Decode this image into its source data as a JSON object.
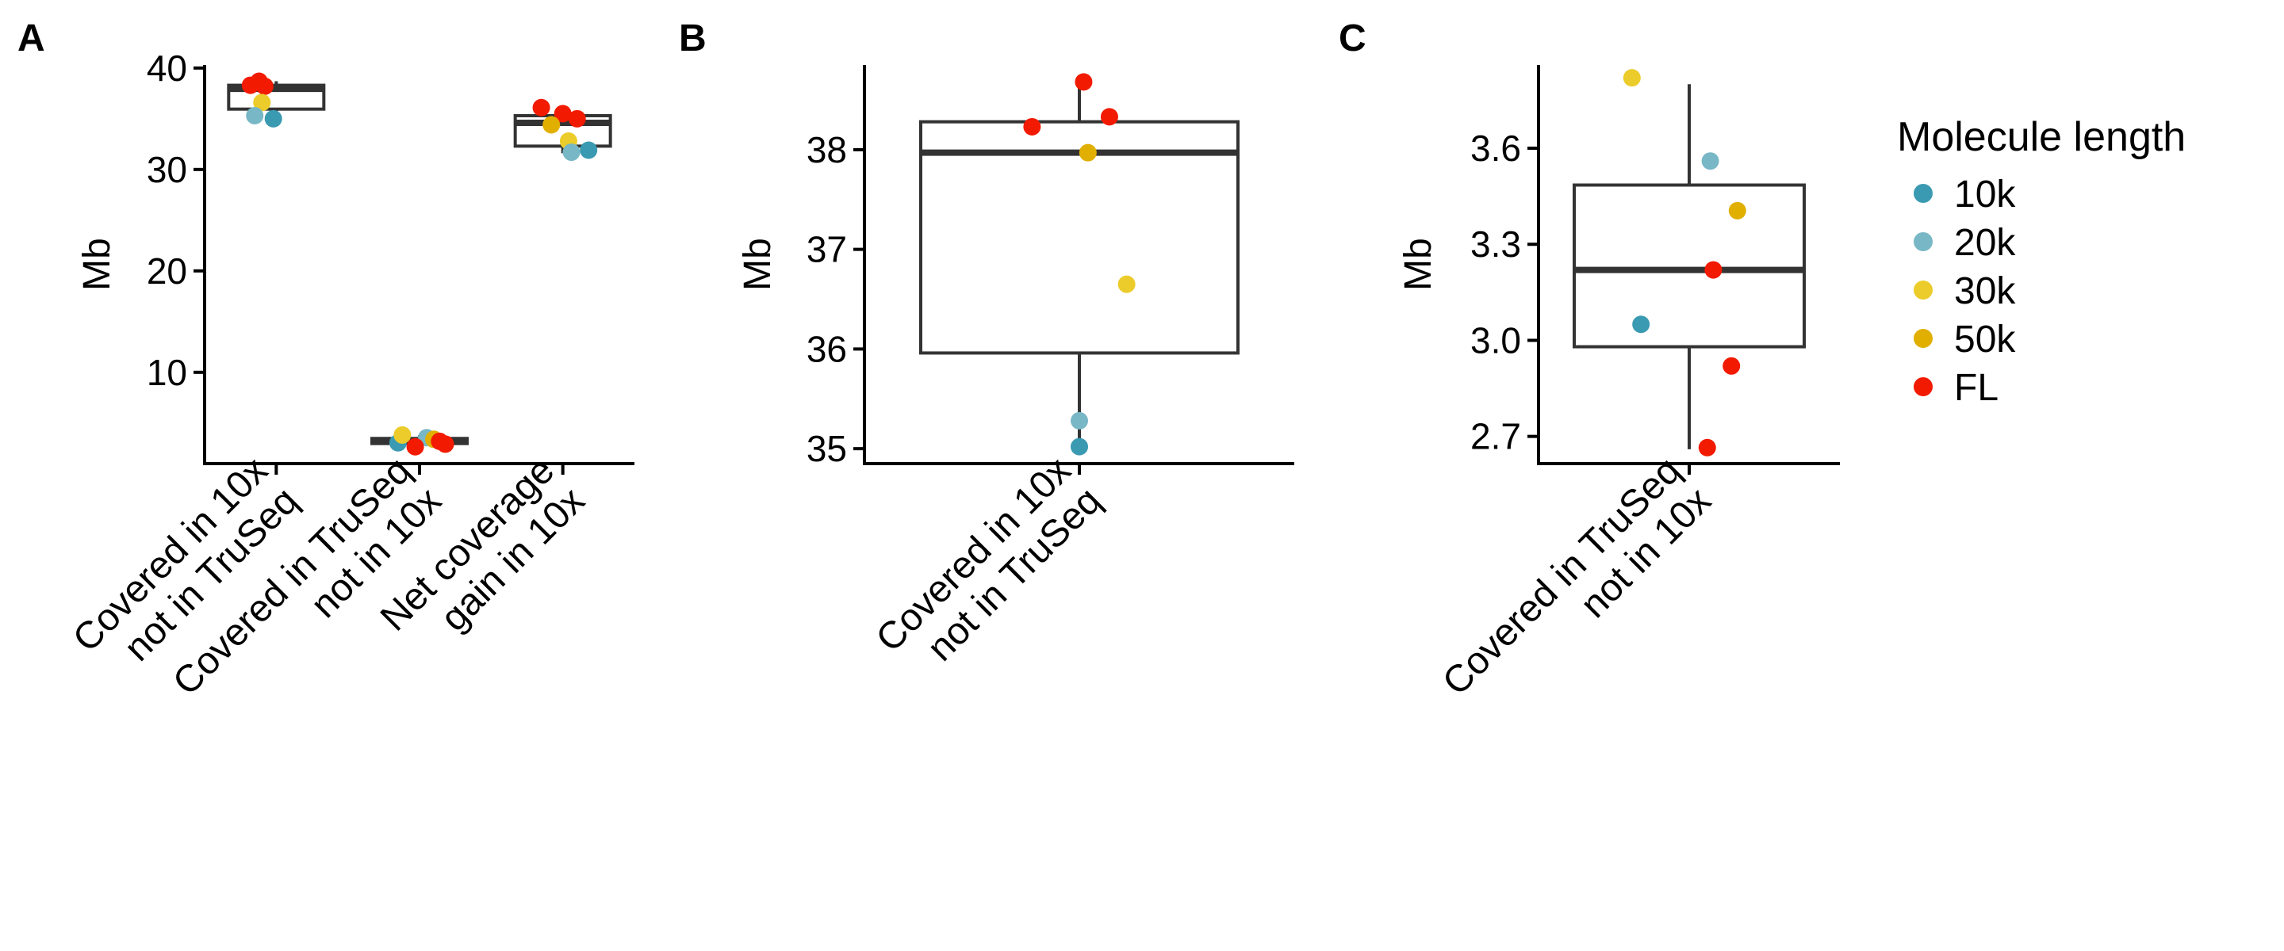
{
  "chart_data": [
    {
      "type": "box",
      "panel": "A",
      "ylabel": "Mb",
      "ylim": [
        1,
        40.3
      ],
      "yticks": [
        10,
        20,
        30,
        40
      ],
      "categories": [
        [
          "Covered in 10x",
          "not in TruSeq"
        ],
        [
          "Covered in TruSeq",
          "not in 10x"
        ],
        [
          "Net coverage",
          "gain in 10x"
        ]
      ],
      "boxes": [
        {
          "q1": 35.95,
          "median": 37.95,
          "q3": 38.3,
          "whisker_low": 35.0,
          "whisker_high": 38.7
        },
        {
          "q1": 2.98,
          "median": 3.22,
          "q3": 3.48,
          "whisker_low": 2.66,
          "whisker_high": 3.8
        },
        {
          "q1": 32.3,
          "median": 34.6,
          "q3": 35.3,
          "whisker_low": 31.6,
          "whisker_high": 36.0
        }
      ],
      "points": [
        {
          "cat": 0,
          "jitter": -0.18,
          "y": 38.3,
          "group": "FL"
        },
        {
          "cat": 0,
          "jitter": -0.12,
          "y": 38.7,
          "group": "FL"
        },
        {
          "cat": 0,
          "jitter": -0.08,
          "y": 38.2,
          "group": "FL"
        },
        {
          "cat": 0,
          "jitter": -0.1,
          "y": 36.6,
          "group": "30k"
        },
        {
          "cat": 0,
          "jitter": -0.15,
          "y": 35.3,
          "group": "20k"
        },
        {
          "cat": 0,
          "jitter": -0.02,
          "y": 35.0,
          "group": "10k"
        },
        {
          "cat": 1,
          "jitter": -0.15,
          "y": 3.05,
          "group": "10k"
        },
        {
          "cat": 1,
          "jitter": 0.05,
          "y": 3.56,
          "group": "20k"
        },
        {
          "cat": 1,
          "jitter": -0.12,
          "y": 3.82,
          "group": "30k"
        },
        {
          "cat": 1,
          "jitter": 0.1,
          "y": 3.4,
          "group": "50k"
        },
        {
          "cat": 1,
          "jitter": -0.03,
          "y": 2.66,
          "group": "FL"
        },
        {
          "cat": 1,
          "jitter": 0.14,
          "y": 3.2,
          "group": "FL"
        },
        {
          "cat": 1,
          "jitter": 0.18,
          "y": 2.92,
          "group": "FL"
        },
        {
          "cat": 2,
          "jitter": -0.15,
          "y": 36.1,
          "group": "FL"
        },
        {
          "cat": 2,
          "jitter": 0.0,
          "y": 35.5,
          "group": "FL"
        },
        {
          "cat": 2,
          "jitter": 0.1,
          "y": 35.0,
          "group": "FL"
        },
        {
          "cat": 2,
          "jitter": -0.08,
          "y": 34.4,
          "group": "50k"
        },
        {
          "cat": 2,
          "jitter": 0.04,
          "y": 32.8,
          "group": "30k"
        },
        {
          "cat": 2,
          "jitter": 0.06,
          "y": 31.7,
          "group": "20k"
        },
        {
          "cat": 2,
          "jitter": 0.18,
          "y": 31.9,
          "group": "10k"
        }
      ]
    },
    {
      "type": "box",
      "panel": "B",
      "ylabel": "Mb",
      "ylim": [
        34.85,
        38.85
      ],
      "yticks": [
        35,
        36,
        37,
        38
      ],
      "categories": [
        [
          "Covered in 10x",
          "not in TruSeq"
        ]
      ],
      "boxes": [
        {
          "q1": 35.96,
          "median": 37.97,
          "q3": 38.28,
          "whisker_low": 35.02,
          "whisker_high": 38.68
        }
      ],
      "points": [
        {
          "cat": 0,
          "jitter": -0.11,
          "y": 38.23,
          "group": "FL"
        },
        {
          "cat": 0,
          "jitter": 0.01,
          "y": 38.68,
          "group": "FL"
        },
        {
          "cat": 0,
          "jitter": 0.07,
          "y": 38.33,
          "group": "FL"
        },
        {
          "cat": 0,
          "jitter": 0.02,
          "y": 37.97,
          "group": "50k"
        },
        {
          "cat": 0,
          "jitter": 0.11,
          "y": 36.65,
          "group": "30k"
        },
        {
          "cat": 0,
          "jitter": 0.0,
          "y": 35.28,
          "group": "20k"
        },
        {
          "cat": 0,
          "jitter": 0.0,
          "y": 35.02,
          "group": "10k"
        }
      ]
    },
    {
      "type": "box",
      "panel": "C",
      "ylabel": "Mb",
      "ylim": [
        2.615,
        3.86
      ],
      "yticks": [
        2.7,
        3.0,
        3.3,
        3.6
      ],
      "ytick_labels": [
        "2.7",
        "3.0",
        "3.3",
        "3.6"
      ],
      "categories": [
        [
          "Covered in TruSeq",
          "not in 10x"
        ]
      ],
      "boxes": [
        {
          "q1": 2.98,
          "median": 3.22,
          "q3": 3.485,
          "whisker_low": 2.66,
          "whisker_high": 3.8
        }
      ],
      "points": [
        {
          "cat": 0,
          "jitter": -0.19,
          "y": 3.82,
          "group": "30k"
        },
        {
          "cat": 0,
          "jitter": 0.07,
          "y": 3.56,
          "group": "20k"
        },
        {
          "cat": 0,
          "jitter": 0.16,
          "y": 3.405,
          "group": "50k"
        },
        {
          "cat": 0,
          "jitter": 0.08,
          "y": 3.22,
          "group": "FL"
        },
        {
          "cat": 0,
          "jitter": -0.16,
          "y": 3.05,
          "group": "10k"
        },
        {
          "cat": 0,
          "jitter": 0.14,
          "y": 2.92,
          "group": "FL"
        },
        {
          "cat": 0,
          "jitter": 0.06,
          "y": 2.665,
          "group": "FL"
        }
      ]
    }
  ],
  "legend": {
    "title": "Molecule length",
    "placement": "right",
    "entries": [
      {
        "label": "10k",
        "color": "#3A9AB2"
      },
      {
        "label": "20k",
        "color": "#78B7C5"
      },
      {
        "label": "30k",
        "color": "#EBCC2A"
      },
      {
        "label": "50k",
        "color": "#E1AF00"
      },
      {
        "label": "FL",
        "color": "#F21A00"
      }
    ]
  }
}
